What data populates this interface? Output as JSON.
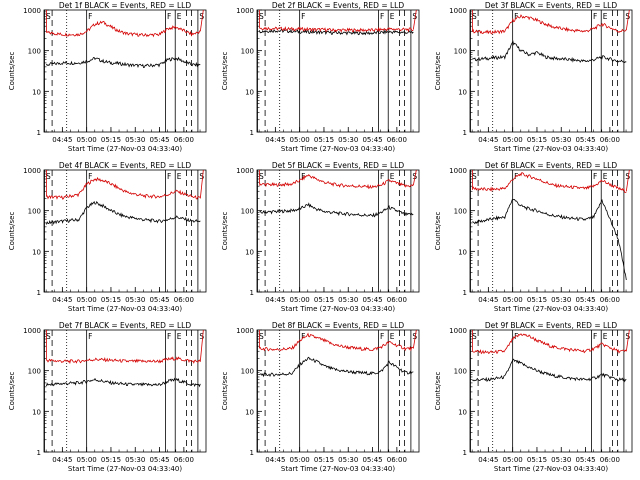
{
  "chart_data": [
    {
      "type": "line",
      "title": "Det 1f BLACK = Events, RED = LLD",
      "xlabel": "Start Time (27-Nov-03 04:33:40)",
      "ylabel": "Counts/sec",
      "x_ticks": [
        "04:45",
        "05:00",
        "05:15",
        "05:30",
        "05:45",
        "06:00"
      ],
      "y_ticks": [
        "1",
        "10",
        "100",
        "1000"
      ],
      "ylim": [
        1,
        1000
      ],
      "y_scale": "log",
      "markers": [
        "S",
        "F",
        "F",
        "E",
        "S"
      ],
      "series": [
        {
          "name": "Events",
          "color": "#000000",
          "x_minutes": [
            0,
            10,
            20,
            25,
            30,
            35,
            40,
            45,
            50,
            60,
            70,
            75,
            80,
            90,
            95
          ],
          "values": [
            45,
            50,
            50,
            55,
            65,
            55,
            50,
            48,
            45,
            42,
            45,
            60,
            65,
            45,
            45
          ]
        },
        {
          "name": "LLD",
          "color": "#d40000",
          "x_minutes": [
            0,
            10,
            20,
            25,
            30,
            35,
            40,
            45,
            50,
            60,
            70,
            75,
            80,
            90,
            95
          ],
          "values": [
            280,
            250,
            250,
            300,
            450,
            500,
            380,
            300,
            260,
            240,
            250,
            350,
            380,
            250,
            300
          ]
        }
      ]
    },
    {
      "type": "line",
      "title": "Det 2f BLACK = Events, RED = LLD",
      "xlabel": "Start Time (27-Nov-03 04:33:40)",
      "ylabel": "Counts/sec",
      "x_ticks": [
        "04:45",
        "05:00",
        "05:15",
        "05:30",
        "05:45",
        "06:00"
      ],
      "y_ticks": [
        "1",
        "10",
        "100",
        "1000"
      ],
      "ylim": [
        1,
        1000
      ],
      "y_scale": "log",
      "markers": [
        "S",
        "F",
        "F",
        "E",
        "S"
      ],
      "series": [
        {
          "name": "Events",
          "color": "#000000",
          "x_minutes": [
            0,
            10,
            20,
            25,
            30,
            35,
            40,
            45,
            50,
            60,
            70,
            75,
            80,
            90,
            95
          ],
          "values": [
            300,
            310,
            300,
            290,
            290,
            285,
            280,
            275,
            275,
            270,
            270,
            280,
            290,
            280,
            280
          ]
        },
        {
          "name": "LLD",
          "color": "#d40000",
          "x_minutes": [
            0,
            10,
            20,
            25,
            30,
            35,
            40,
            45,
            50,
            60,
            70,
            75,
            80,
            90,
            95
          ],
          "values": [
            360,
            350,
            340,
            340,
            335,
            330,
            330,
            320,
            320,
            320,
            320,
            330,
            340,
            330,
            330
          ]
        }
      ]
    },
    {
      "type": "line",
      "title": "Det 3f BLACK = Events, RED = LLD",
      "xlabel": "Start Time (27-Nov-03 04:33:40)",
      "ylabel": "Counts/sec",
      "x_ticks": [
        "04:45",
        "05:00",
        "05:15",
        "05:30",
        "05:45",
        "06:00"
      ],
      "y_ticks": [
        "1",
        "10",
        "100",
        "1000"
      ],
      "ylim": [
        1,
        1000
      ],
      "y_scale": "log",
      "markers": [
        "S",
        "F",
        "F",
        "E",
        "S"
      ],
      "series": [
        {
          "name": "Events",
          "color": "#000000",
          "x_minutes": [
            0,
            10,
            20,
            25,
            30,
            35,
            40,
            45,
            50,
            60,
            70,
            75,
            80,
            90,
            95
          ],
          "values": [
            60,
            65,
            70,
            160,
            100,
            80,
            90,
            70,
            65,
            60,
            55,
            60,
            70,
            55,
            55
          ]
        },
        {
          "name": "LLD",
          "color": "#d40000",
          "x_minutes": [
            0,
            10,
            20,
            25,
            30,
            35,
            40,
            45,
            50,
            60,
            70,
            75,
            80,
            90,
            95
          ],
          "values": [
            300,
            280,
            300,
            550,
            700,
            650,
            550,
            450,
            380,
            320,
            300,
            350,
            450,
            300,
            320
          ]
        }
      ]
    },
    {
      "type": "line",
      "title": "Det 4f BLACK = Events, RED = LLD",
      "xlabel": "Start Time (27-Nov-03 04:33:40)",
      "ylabel": "Counts/sec",
      "x_ticks": [
        "04:45",
        "05:00",
        "05:15",
        "05:30",
        "05:45",
        "06:00"
      ],
      "y_ticks": [
        "1",
        "10",
        "100",
        "1000"
      ],
      "ylim": [
        1,
        1000
      ],
      "y_scale": "log",
      "markers": [
        "S",
        "F",
        "F",
        "E",
        "S"
      ],
      "series": [
        {
          "name": "Events",
          "color": "#000000",
          "x_minutes": [
            0,
            10,
            20,
            25,
            30,
            35,
            40,
            45,
            50,
            60,
            70,
            75,
            80,
            90,
            95
          ],
          "values": [
            50,
            55,
            60,
            120,
            160,
            130,
            100,
            80,
            70,
            60,
            55,
            60,
            70,
            55,
            55
          ]
        },
        {
          "name": "LLD",
          "color": "#d40000",
          "x_minutes": [
            0,
            10,
            20,
            25,
            30,
            35,
            40,
            45,
            50,
            60,
            70,
            75,
            80,
            90,
            95
          ],
          "values": [
            220,
            210,
            250,
            450,
            600,
            550,
            450,
            350,
            280,
            230,
            220,
            250,
            300,
            220,
            200
          ]
        }
      ]
    },
    {
      "type": "line",
      "title": "Det 5f BLACK = Events, RED = LLD",
      "xlabel": "Start Time (27-Nov-03 04:33:40)",
      "ylabel": "Counts/sec",
      "x_ticks": [
        "04:45",
        "05:00",
        "05:15",
        "05:30",
        "05:45",
        "06:00"
      ],
      "y_ticks": [
        "1",
        "10",
        "100",
        "1000"
      ],
      "ylim": [
        1,
        1000
      ],
      "y_scale": "log",
      "markers": [
        "S",
        "F",
        "F",
        "E",
        "S"
      ],
      "series": [
        {
          "name": "Events",
          "color": "#000000",
          "x_minutes": [
            0,
            10,
            20,
            25,
            30,
            35,
            40,
            45,
            50,
            60,
            70,
            75,
            80,
            90,
            95
          ],
          "values": [
            90,
            95,
            100,
            110,
            140,
            110,
            95,
            90,
            85,
            80,
            75,
            90,
            120,
            80,
            80
          ]
        },
        {
          "name": "LLD",
          "color": "#d40000",
          "x_minutes": [
            0,
            10,
            20,
            25,
            30,
            35,
            40,
            45,
            50,
            60,
            70,
            75,
            80,
            90,
            95
          ],
          "values": [
            450,
            430,
            450,
            550,
            750,
            600,
            500,
            450,
            420,
            400,
            380,
            420,
            550,
            400,
            420
          ]
        }
      ]
    },
    {
      "type": "line",
      "title": "Det 6f BLACK = Events, RED = LLD",
      "xlabel": "Start Time (27-Nov-03 04:33:40)",
      "ylabel": "Counts/sec",
      "x_ticks": [
        "04:45",
        "05:00",
        "05:15",
        "05:30",
        "05:45",
        "06:00"
      ],
      "y_ticks": [
        "1",
        "10",
        "100",
        "1000"
      ],
      "ylim": [
        1,
        1000
      ],
      "y_scale": "log",
      "markers": [
        "S",
        "F",
        "F",
        "E",
        "S"
      ],
      "series": [
        {
          "name": "Events",
          "color": "#000000",
          "x_minutes": [
            0,
            10,
            20,
            25,
            30,
            35,
            40,
            45,
            50,
            60,
            70,
            75,
            80,
            90,
            95
          ],
          "values": [
            50,
            60,
            70,
            200,
            130,
            110,
            100,
            85,
            75,
            65,
            60,
            70,
            180,
            20,
            2
          ]
        },
        {
          "name": "LLD",
          "color": "#d40000",
          "x_minutes": [
            0,
            10,
            20,
            25,
            30,
            35,
            40,
            45,
            50,
            60,
            70,
            75,
            80,
            90,
            95
          ],
          "values": [
            350,
            330,
            350,
            600,
            800,
            700,
            600,
            500,
            420,
            380,
            350,
            400,
            550,
            350,
            300
          ]
        }
      ]
    },
    {
      "type": "line",
      "title": "Det 7f BLACK = Events, RED = LLD",
      "xlabel": "Start Time (27-Nov-03 04:33:40)",
      "ylabel": "Counts/sec",
      "x_ticks": [
        "04:45",
        "05:00",
        "05:15",
        "05:30",
        "05:45",
        "06:00"
      ],
      "y_ticks": [
        "1",
        "10",
        "100",
        "1000"
      ],
      "ylim": [
        1,
        1000
      ],
      "y_scale": "log",
      "markers": [
        "S",
        "F",
        "F",
        "E",
        "S"
      ],
      "series": [
        {
          "name": "Events",
          "color": "#000000",
          "x_minutes": [
            0,
            10,
            20,
            25,
            30,
            35,
            40,
            45,
            50,
            60,
            70,
            75,
            80,
            90,
            95
          ],
          "values": [
            45,
            48,
            50,
            55,
            60,
            55,
            50,
            48,
            46,
            45,
            45,
            55,
            60,
            45,
            45
          ]
        },
        {
          "name": "LLD",
          "color": "#d40000",
          "x_minutes": [
            0,
            10,
            20,
            25,
            30,
            35,
            40,
            45,
            50,
            60,
            70,
            75,
            80,
            90,
            95
          ],
          "values": [
            180,
            170,
            170,
            180,
            190,
            185,
            180,
            175,
            170,
            170,
            170,
            190,
            200,
            170,
            170
          ]
        }
      ]
    },
    {
      "type": "line",
      "title": "Det 8f BLACK = Events, RED = LLD",
      "xlabel": "Start Time (27-Nov-03 04:33:40)",
      "ylabel": "Counts/sec",
      "x_ticks": [
        "04:45",
        "05:00",
        "05:15",
        "05:30",
        "05:45",
        "06:00"
      ],
      "y_ticks": [
        "1",
        "10",
        "100",
        "1000"
      ],
      "ylim": [
        1,
        1000
      ],
      "y_scale": "log",
      "markers": [
        "S",
        "F",
        "F",
        "E",
        "S"
      ],
      "series": [
        {
          "name": "Events",
          "color": "#000000",
          "x_minutes": [
            0,
            10,
            20,
            25,
            30,
            35,
            40,
            45,
            50,
            60,
            70,
            75,
            80,
            90,
            95
          ],
          "values": [
            80,
            80,
            85,
            140,
            200,
            170,
            130,
            110,
            100,
            90,
            85,
            95,
            160,
            90,
            90
          ]
        },
        {
          "name": "LLD",
          "color": "#d40000",
          "x_minutes": [
            0,
            10,
            20,
            25,
            30,
            35,
            40,
            45,
            50,
            60,
            70,
            75,
            80,
            90,
            95
          ],
          "values": [
            350,
            330,
            350,
            550,
            750,
            650,
            550,
            450,
            400,
            350,
            330,
            380,
            500,
            350,
            350
          ]
        }
      ]
    },
    {
      "type": "line",
      "title": "Det 9f BLACK = Events, RED = LLD",
      "xlabel": "Start Time (27-Nov-03 04:33:40)",
      "ylabel": "Counts/sec",
      "x_ticks": [
        "04:45",
        "05:00",
        "05:15",
        "05:30",
        "05:45",
        "06:00"
      ],
      "y_ticks": [
        "1",
        "10",
        "100",
        "1000"
      ],
      "ylim": [
        1,
        1000
      ],
      "y_scale": "log",
      "markers": [
        "S",
        "F",
        "F",
        "E",
        "S"
      ],
      "series": [
        {
          "name": "Events",
          "color": "#000000",
          "x_minutes": [
            0,
            10,
            20,
            25,
            30,
            35,
            40,
            45,
            50,
            60,
            70,
            75,
            80,
            90,
            95
          ],
          "values": [
            60,
            60,
            70,
            180,
            150,
            120,
            100,
            85,
            75,
            65,
            60,
            65,
            80,
            60,
            60
          ]
        },
        {
          "name": "LLD",
          "color": "#d40000",
          "x_minutes": [
            0,
            10,
            20,
            25,
            30,
            35,
            40,
            45,
            50,
            60,
            70,
            75,
            80,
            90,
            95
          ],
          "values": [
            300,
            280,
            300,
            600,
            800,
            700,
            550,
            450,
            380,
            330,
            300,
            350,
            450,
            300,
            300
          ]
        }
      ]
    }
  ]
}
